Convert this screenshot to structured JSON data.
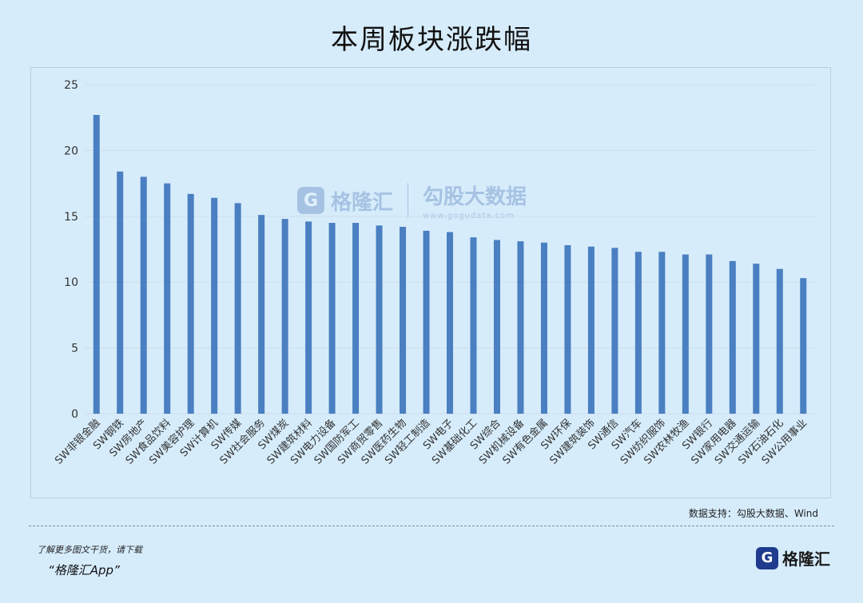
{
  "title": "本周板块涨跌幅",
  "source": "数据支持：勾股大数据、Wind",
  "footer": {
    "line1": "了解更多图文干货，请下载",
    "line2": "“格隆汇App”",
    "brand_name": "格隆汇",
    "brand_icon": "G-logo-icon"
  },
  "watermark": {
    "name": "格隆汇",
    "name2": "勾股大数据",
    "url": "www.gogudata.com"
  },
  "colors": {
    "bar": "#4a7fc1",
    "grid": "#cfdde8",
    "background": "#d6ecfb"
  },
  "chart_data": {
    "type": "bar",
    "title": "本周板块涨跌幅",
    "xlabel": "",
    "ylabel": "",
    "ylim": [
      0,
      25
    ],
    "yticks": [
      0,
      5,
      10,
      15,
      20,
      25
    ],
    "grid": true,
    "categories": [
      "SW非银金融",
      "SW钢铁",
      "SW房地产",
      "SW食品饮料",
      "SW美容护理",
      "SW计算机",
      "SW传媒",
      "SW社会服务",
      "SW煤炭",
      "SW建筑材料",
      "SW电力设备",
      "SW国防军工",
      "SW商贸零售",
      "SW医药生物",
      "SW轻工制造",
      "SW电子",
      "SW基础化工",
      "SW综合",
      "SW机械设备",
      "SW有色金属",
      "SW环保",
      "SW建筑装饰",
      "SW通信",
      "SW汽车",
      "SW纺织服饰",
      "SW农林牧渔",
      "SW银行",
      "SW家用电器",
      "SW交通运输",
      "SW石油石化",
      "SW公用事业"
    ],
    "values": [
      22.7,
      18.4,
      18.0,
      17.5,
      16.7,
      16.4,
      16.0,
      15.1,
      14.8,
      14.6,
      14.5,
      14.5,
      14.3,
      14.2,
      13.9,
      13.8,
      13.4,
      13.2,
      13.1,
      13.0,
      12.8,
      12.7,
      12.6,
      12.3,
      12.3,
      12.1,
      12.1,
      11.6,
      11.4,
      11.0,
      10.3
    ]
  }
}
